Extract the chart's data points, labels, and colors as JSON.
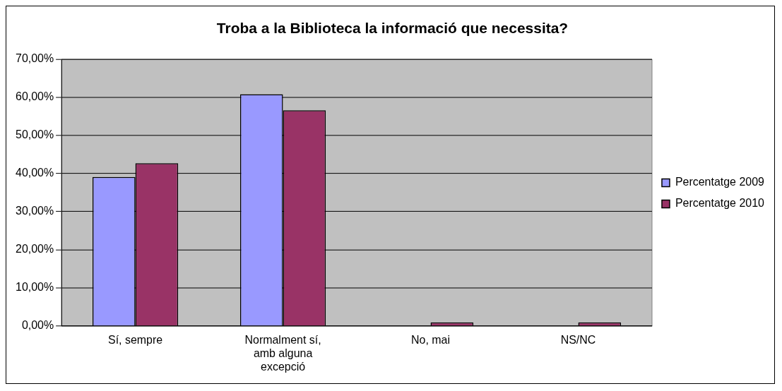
{
  "chart_data": {
    "type": "bar",
    "title": "Troba a la Biblioteca la informació que necessita?",
    "categories": [
      "Sí, sempre",
      "Normalment sí, amb alguna excepció",
      "No, mai",
      "NS/NC"
    ],
    "series": [
      {
        "name": "Percentatge 2009",
        "color": "#9999ff",
        "values": [
          39.1,
          60.8,
          0,
          0
        ]
      },
      {
        "name": "Percentatge 2010",
        "color": "#993366",
        "values": [
          42.7,
          56.6,
          0.9,
          0.9
        ]
      }
    ],
    "ylim": [
      0,
      70
    ],
    "yticks": [
      {
        "value": 0,
        "label": "0,00%"
      },
      {
        "value": 10,
        "label": "10,00%"
      },
      {
        "value": 20,
        "label": "20,00%"
      },
      {
        "value": 30,
        "label": "30,00%"
      },
      {
        "value": 40,
        "label": "40,00%"
      },
      {
        "value": 50,
        "label": "50,00%"
      },
      {
        "value": 60,
        "label": "60,00%"
      },
      {
        "value": 70,
        "label": "70,00%"
      }
    ],
    "grid": "y",
    "legend": "right"
  }
}
